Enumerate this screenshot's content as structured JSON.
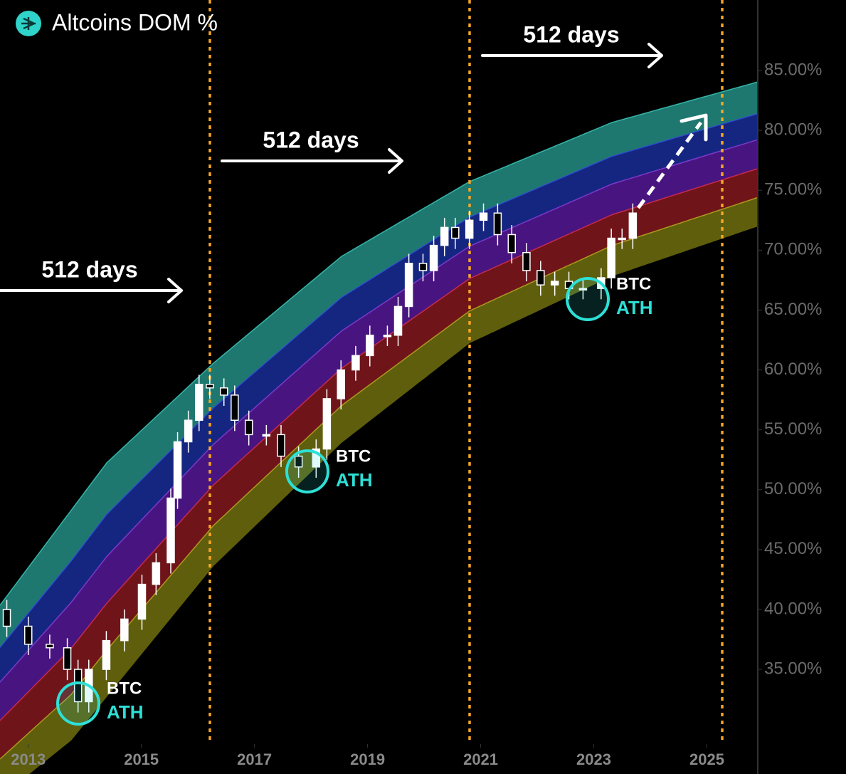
{
  "chart_data": {
    "type": "candlestick",
    "title": "Altcoins DOM %",
    "x": [
      2012.62,
      2013.0,
      2013.38,
      2013.69,
      2013.88,
      2014.07,
      2014.38,
      2014.7,
      2015.01,
      2015.26,
      2015.52,
      2015.64,
      2015.83,
      2016.02,
      2016.21,
      2016.46,
      2016.65,
      2016.9,
      2017.21,
      2017.47,
      2017.78,
      2018.09,
      2018.28,
      2018.53,
      2018.79,
      2019.04,
      2019.35,
      2019.54,
      2019.73,
      2019.98,
      2020.17,
      2020.36,
      2020.55,
      2020.8,
      2021.05,
      2021.3,
      2021.55,
      2021.81,
      2022.06,
      2022.31,
      2022.56,
      2022.81,
      2023.13,
      2023.31,
      2023.5,
      2023.69
    ],
    "open": [
      40.0,
      38.6,
      37.1,
      36.8,
      35.0,
      32.3,
      35.0,
      37.4,
      39.2,
      42.1,
      43.9,
      49.3,
      54.0,
      55.8,
      58.8,
      58.5,
      57.9,
      55.8,
      54.6,
      54.6,
      52.8,
      51.9,
      53.4,
      57.6,
      60.0,
      61.2,
      62.9,
      62.9,
      65.3,
      68.9,
      68.3,
      70.4,
      71.9,
      71.0,
      72.5,
      73.1,
      71.3,
      69.8,
      68.3,
      67.1,
      67.4,
      66.8,
      66.8,
      67.7,
      71.0,
      71.0
    ],
    "high": [
      40.8,
      39.4,
      37.9,
      37.6,
      35.8,
      35.8,
      38.2,
      40.0,
      42.9,
      44.7,
      50.1,
      54.8,
      56.6,
      59.6,
      59.6,
      59.3,
      58.7,
      56.6,
      55.4,
      55.4,
      53.6,
      54.2,
      58.4,
      60.8,
      62.0,
      63.7,
      63.7,
      66.1,
      69.7,
      69.7,
      71.2,
      72.7,
      72.7,
      73.3,
      73.9,
      73.9,
      72.1,
      70.6,
      69.1,
      68.2,
      68.2,
      67.6,
      68.5,
      71.8,
      71.8,
      73.9
    ],
    "low": [
      37.7,
      36.2,
      35.9,
      34.1,
      31.4,
      31.4,
      34.1,
      36.5,
      38.3,
      41.2,
      43.0,
      48.4,
      53.1,
      54.9,
      57.6,
      57.0,
      54.9,
      53.7,
      53.7,
      51.9,
      51.0,
      51.0,
      52.5,
      56.7,
      59.1,
      60.3,
      62.0,
      62.0,
      64.4,
      67.4,
      67.4,
      69.5,
      70.1,
      70.1,
      71.6,
      70.4,
      68.9,
      67.4,
      66.2,
      66.2,
      65.9,
      65.9,
      65.9,
      66.8,
      70.1,
      70.1
    ],
    "close": [
      38.6,
      37.1,
      36.8,
      35.0,
      32.3,
      35.0,
      37.4,
      39.2,
      42.1,
      43.9,
      49.3,
      54.0,
      55.8,
      58.8,
      58.5,
      57.9,
      55.8,
      54.6,
      54.6,
      52.8,
      51.9,
      53.4,
      57.6,
      60.0,
      61.2,
      62.9,
      62.9,
      65.3,
      68.9,
      68.3,
      70.4,
      71.9,
      71.0,
      72.5,
      73.1,
      71.3,
      69.8,
      68.3,
      67.1,
      67.4,
      66.8,
      66.8,
      67.7,
      71.0,
      71.0,
      73.1
    ],
    "color": "#ffffff",
    "xlim": [
      2012.5,
      2025.9
    ],
    "xticks": [
      2013,
      2015,
      2017,
      2019,
      2021,
      2023,
      2025
    ],
    "ylim": [
      28.76,
      90.89
    ],
    "yticks": [
      {
        "value": 85,
        "label": "85.00%"
      },
      {
        "value": 80,
        "label": "80.00%"
      },
      {
        "value": 75,
        "label": "75.00%"
      },
      {
        "value": 70,
        "label": "70.00%"
      },
      {
        "value": 65,
        "label": "65.00%"
      },
      {
        "value": 60,
        "label": "60.00%"
      },
      {
        "value": 55,
        "label": "55.00%"
      },
      {
        "value": 50,
        "label": "50.00%"
      },
      {
        "value": 45,
        "label": "45.00%"
      },
      {
        "value": 40,
        "label": "40.00%"
      },
      {
        "value": 35,
        "label": "35.00%"
      }
    ],
    "annotations": [
      "512 days",
      "512 days",
      "512 days"
    ],
    "markers": [
      {
        "top": "BTC",
        "bottom": "ATH"
      },
      {
        "top": "BTC",
        "bottom": "ATH"
      },
      {
        "top": "BTC",
        "bottom": "ATH"
      }
    ]
  }
}
